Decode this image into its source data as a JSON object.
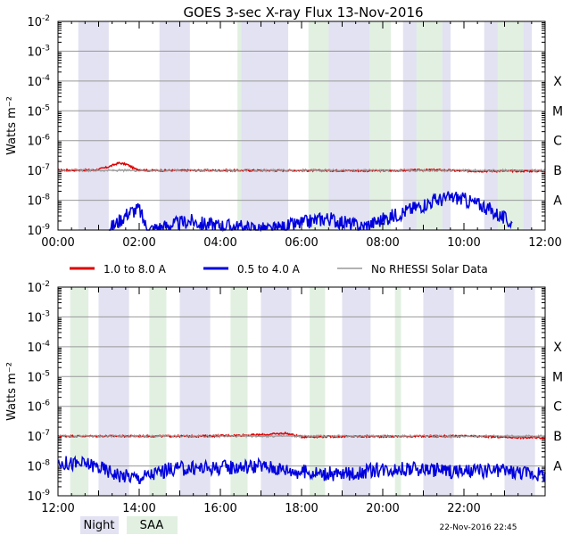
{
  "chart_data": [
    {
      "type": "line",
      "title": "GOES 3-sec X-ray Flux   13-Nov-2016",
      "ylabel": "Watts m⁻²",
      "yscale": "log",
      "ylim_log10": [
        -9,
        -2
      ],
      "y_tick_labels": [
        {
          "exp": -2,
          "base": "10",
          "sup": "-2"
        },
        {
          "exp": -3,
          "base": "10",
          "sup": "-3"
        },
        {
          "exp": -4,
          "base": "10",
          "sup": "-4"
        },
        {
          "exp": -5,
          "base": "10",
          "sup": "-5"
        },
        {
          "exp": -6,
          "base": "10",
          "sup": "-6"
        },
        {
          "exp": -7,
          "base": "10",
          "sup": "-7"
        },
        {
          "exp": -8,
          "base": "10",
          "sup": "-8"
        },
        {
          "exp": -9,
          "base": "10",
          "sup": "-9"
        }
      ],
      "class_labels": [
        {
          "label": "X",
          "exp": -4
        },
        {
          "label": "M",
          "exp": -5
        },
        {
          "label": "C",
          "exp": -6
        },
        {
          "label": "B",
          "exp": -7
        },
        {
          "label": "A",
          "exp": -8
        }
      ],
      "xlim_hours": [
        0,
        12
      ],
      "x_ticks": [
        {
          "h": 0,
          "label": "00:00"
        },
        {
          "h": 2,
          "label": "02:00"
        },
        {
          "h": 4,
          "label": "04:00"
        },
        {
          "h": 6,
          "label": "06:00"
        },
        {
          "h": 8,
          "label": "08:00"
        },
        {
          "h": 10,
          "label": "10:00"
        },
        {
          "h": 12,
          "label": "12:00"
        }
      ],
      "night_hours": [
        [
          0.5,
          1.25
        ],
        [
          2.5,
          3.25
        ],
        [
          4.5,
          5.25
        ],
        [
          6.5,
          7.25
        ],
        [
          8.5,
          9.25
        ],
        [
          10.5,
          11.25
        ],
        [
          12,
          12
        ]
      ],
      "night_hours_extra": [
        [
          5.0,
          5.67
        ],
        [
          7.0,
          7.67
        ],
        [
          9.0,
          9.67
        ],
        [
          11.0,
          11.67
        ]
      ],
      "saa_hours": [
        [
          4.42,
          4.52
        ],
        [
          6.17,
          6.67
        ],
        [
          7.67,
          8.2
        ],
        [
          8.83,
          9.47
        ],
        [
          10.83,
          11.47
        ]
      ],
      "series": [
        {
          "name": "1.0 to 8.0 A",
          "color": "#dd0000",
          "points": [
            [
              0,
              -6.99
            ],
            [
              0.9,
              -6.99
            ],
            [
              1.2,
              -6.9
            ],
            [
              1.5,
              -6.75
            ],
            [
              1.7,
              -6.8
            ],
            [
              1.9,
              -6.95
            ],
            [
              2.2,
              -7.0
            ],
            [
              4,
              -7.0
            ],
            [
              6,
              -7.0
            ],
            [
              8,
              -7.01
            ],
            [
              9.3,
              -6.98
            ],
            [
              10,
              -7.02
            ],
            [
              12,
              -7.02
            ]
          ]
        },
        {
          "name": "0.5 to 4.0 A",
          "color": "#0000dd",
          "points": [
            [
              1.25,
              -9.0
            ],
            [
              1.75,
              -8.4
            ],
            [
              2.0,
              -8.3
            ],
            [
              2.2,
              -9.0
            ],
            [
              3.25,
              -8.7
            ],
            [
              3.6,
              -8.8
            ],
            [
              5.25,
              -9.0
            ],
            [
              6.6,
              -8.6
            ],
            [
              7.5,
              -8.9
            ],
            [
              9.3,
              -8.0
            ],
            [
              9.8,
              -7.9
            ],
            [
              10.5,
              -8.2
            ],
            [
              11.2,
              -8.8
            ]
          ]
        },
        {
          "name": "No RHESSI Solar Data",
          "color": "#999999",
          "points": [
            [
              0,
              -7.0
            ],
            [
              12,
              -7.0
            ]
          ]
        }
      ]
    },
    {
      "type": "line",
      "ylabel": "Watts m⁻²",
      "yscale": "log",
      "ylim_log10": [
        -9,
        -2
      ],
      "y_tick_labels": [
        {
          "exp": -2,
          "base": "10",
          "sup": "-2"
        },
        {
          "exp": -3,
          "base": "10",
          "sup": "-3"
        },
        {
          "exp": -4,
          "base": "10",
          "sup": "-4"
        },
        {
          "exp": -5,
          "base": "10",
          "sup": "-5"
        },
        {
          "exp": -6,
          "base": "10",
          "sup": "-6"
        },
        {
          "exp": -7,
          "base": "10",
          "sup": "-7"
        },
        {
          "exp": -8,
          "base": "10",
          "sup": "-8"
        },
        {
          "exp": -9,
          "base": "10",
          "sup": "-9"
        }
      ],
      "class_labels": [
        {
          "label": "X",
          "exp": -4
        },
        {
          "label": "M",
          "exp": -5
        },
        {
          "label": "C",
          "exp": -6
        },
        {
          "label": "B",
          "exp": -7
        },
        {
          "label": "A",
          "exp": -8
        }
      ],
      "xlim_hours": [
        12,
        24
      ],
      "x_ticks": [
        {
          "h": 12,
          "label": "12:00"
        },
        {
          "h": 14,
          "label": "14:00"
        },
        {
          "h": 16,
          "label": "16:00"
        },
        {
          "h": 18,
          "label": "18:00"
        },
        {
          "h": 20,
          "label": "20:00"
        },
        {
          "h": 22,
          "label": "22:00"
        }
      ],
      "night_hours": [
        [
          13.0,
          13.75
        ],
        [
          15.0,
          15.75
        ],
        [
          17.0,
          17.75
        ],
        [
          19.0,
          19.7
        ],
        [
          21.0,
          21.75
        ],
        [
          23.0,
          23.75
        ]
      ],
      "saa_hours": [
        [
          12.3,
          12.75
        ],
        [
          14.25,
          14.67
        ],
        [
          16.25,
          16.67
        ],
        [
          18.2,
          18.58
        ],
        [
          20.3,
          20.45
        ]
      ],
      "series": [
        {
          "name": "1.0 to 8.0 A",
          "color": "#dd0000",
          "points": [
            [
              12,
              -7.0
            ],
            [
              15.5,
              -7.0
            ],
            [
              17.1,
              -6.95
            ],
            [
              17.6,
              -6.9
            ],
            [
              18,
              -7.02
            ],
            [
              22,
              -7.0
            ],
            [
              23.5,
              -7.05
            ],
            [
              24,
              -7.05
            ]
          ]
        },
        {
          "name": "0.5 to 4.0 A",
          "color": "#0000dd",
          "points": [
            [
              12,
              -7.9
            ],
            [
              12.8,
              -7.95
            ],
            [
              13.5,
              -8.3
            ],
            [
              14.0,
              -8.4
            ],
            [
              14.8,
              -8.1
            ],
            [
              16,
              -8.05
            ],
            [
              17,
              -8.0
            ],
            [
              18,
              -8.2
            ],
            [
              19,
              -8.3
            ],
            [
              20,
              -8.1
            ],
            [
              21,
              -8.1
            ],
            [
              22,
              -8.2
            ],
            [
              23,
              -8.15
            ],
            [
              24,
              -8.3
            ]
          ]
        },
        {
          "name": "No RHESSI Solar Data",
          "color": "#999999",
          "points": [
            [
              12,
              -7.0
            ],
            [
              24,
              -7.0
            ]
          ]
        }
      ]
    }
  ],
  "legend": {
    "items": [
      {
        "label": "1.0 to 8.0 A",
        "color": "#dd0000"
      },
      {
        "label": "0.5 to 4.0 A",
        "color": "#0000dd"
      },
      {
        "label": "No RHESSI Solar Data",
        "color": "#999999"
      }
    ]
  },
  "bottom_legend": {
    "night_label": "Night",
    "saa_label": "SAA",
    "night_color": "#e2e2f2",
    "saa_color": "#e2f0e2"
  },
  "timestamp": "22-Nov-2016 22:45"
}
